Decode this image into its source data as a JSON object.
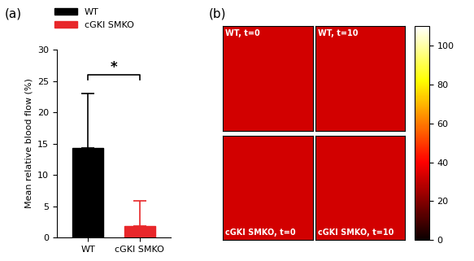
{
  "chart_data": [
    {
      "type": "bar",
      "title": "(a)",
      "categories": [
        "WT",
        "cGKI SMKO"
      ],
      "series": [
        {
          "name": "WT",
          "color": "#000000",
          "values": [
            14.3,
            null
          ],
          "errors": [
            8.7,
            null
          ]
        },
        {
          "name": "cGKI SMKO",
          "color": "#e8272a",
          "values": [
            null,
            1.8
          ],
          "errors": [
            null,
            4.1
          ]
        }
      ],
      "y_label": "Mean relative blood flow (%)",
      "ylim": [
        0,
        30
      ],
      "yticks": [
        0,
        5,
        10,
        15,
        20,
        25,
        30
      ],
      "legend": "upper left",
      "annotations": [
        {
          "text": "*",
          "from": 0,
          "to": 1,
          "y": 26
        }
      ]
    },
    {
      "type": "image",
      "title": "(b)",
      "panels": [
        "WT, t=0",
        "WT, t=10",
        "cGKI SMKO, t=0",
        "cGKI SMKO, t=10"
      ],
      "colorbar_range": [
        0,
        110
      ],
      "colorbar_ticks": [
        0,
        20,
        40,
        60,
        80,
        100
      ]
    }
  ]
}
